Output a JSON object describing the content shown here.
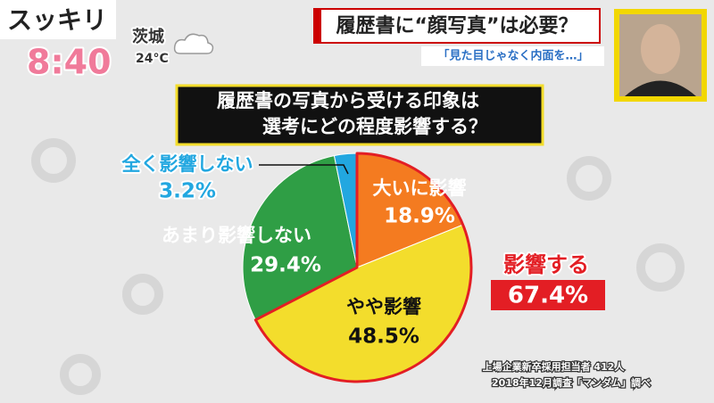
{
  "broadcast": {
    "program": "スッキリ",
    "time": "8:40",
    "region": "茨城",
    "temperature": "24°C",
    "headline": "履歴書に“顔写真”は必要？",
    "subheadline": "「見た目じゃなく内面を…」"
  },
  "chart_data": {
    "type": "pie",
    "title": [
      "履歴書の写真から受ける印象は",
      "選考にどの程度影響する？"
    ],
    "categories": [
      "大いに影響",
      "やや影響",
      "あまり影響しない",
      "全く影響しない"
    ],
    "values": [
      18.9,
      48.5,
      29.4,
      3.2
    ],
    "value_labels": [
      "18.9%",
      "48.5%",
      "29.4%",
      "3.2%"
    ],
    "colors": [
      "#f47b20",
      "#f3dd2c",
      "#2f9e45",
      "#22a7e0"
    ],
    "highlight": {
      "text": "影響する",
      "value": 67.4,
      "value_label": "67.4%",
      "color": "#e31e24"
    },
    "source": [
      "上場企業新卒採用担当者 412人",
      "2018年12月調査「マンダム」調べ"
    ]
  }
}
